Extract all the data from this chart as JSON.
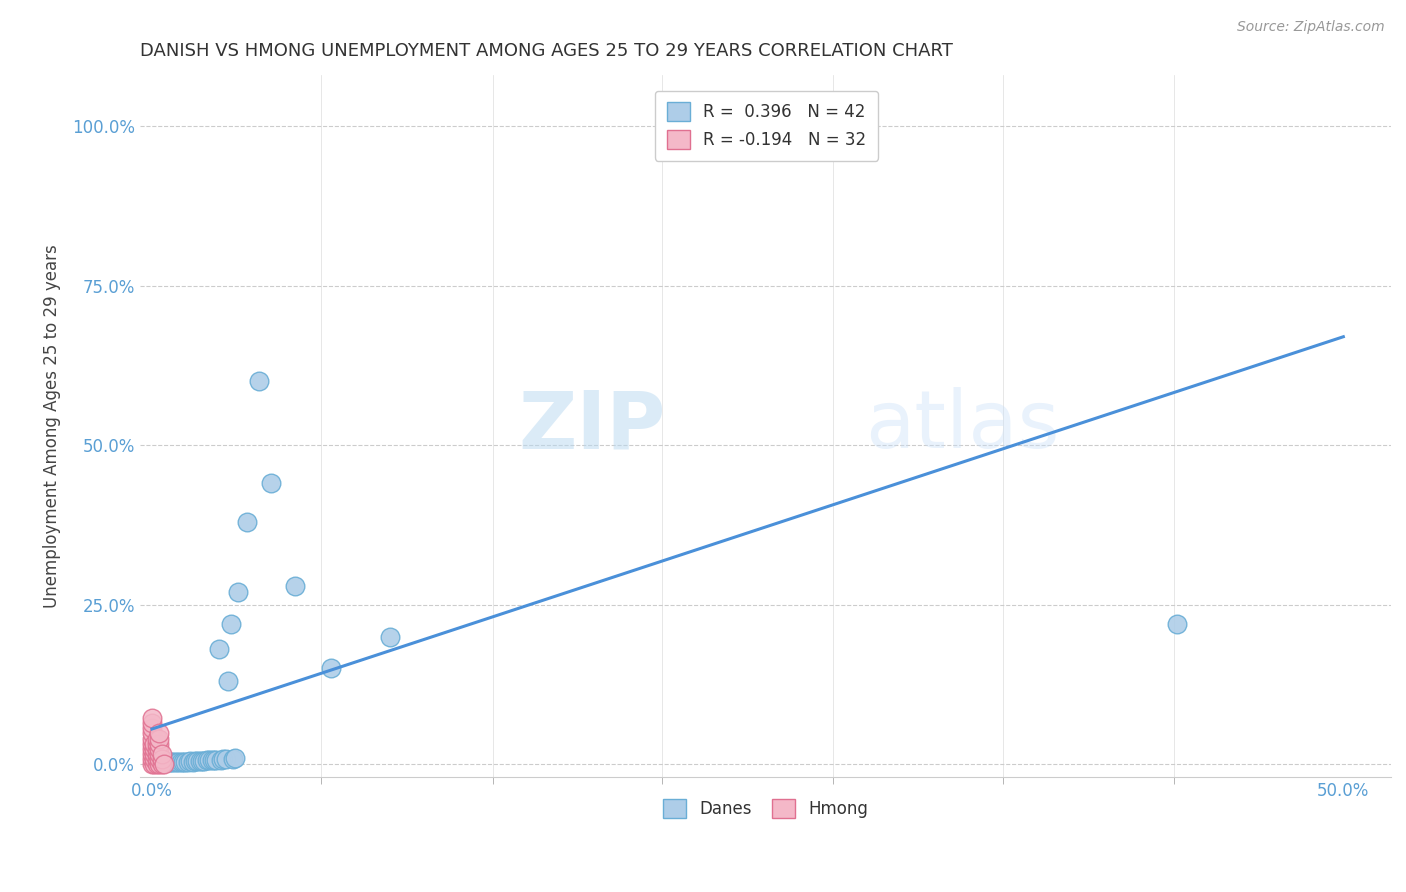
{
  "title": "DANISH VS HMONG UNEMPLOYMENT AMONG AGES 25 TO 29 YEARS CORRELATION CHART",
  "source": "Source: ZipAtlas.com",
  "ylabel": "Unemployment Among Ages 25 to 29 years",
  "xlim": [
    -0.005,
    0.52
  ],
  "ylim": [
    -0.02,
    1.08
  ],
  "x_ticks": [
    0.0,
    0.5
  ],
  "x_tick_labels": [
    "0.0%",
    "50.0%"
  ],
  "y_ticks": [
    0.0,
    0.25,
    0.5,
    0.75,
    1.0
  ],
  "y_tick_labels": [
    "0.0%",
    "25.0%",
    "50.0%",
    "75.0%",
    "100.0%"
  ],
  "legend_r_danes": "R =  0.396",
  "legend_n_danes": "N = 42",
  "legend_r_hmong": "R = -0.194",
  "legend_n_hmong": "N = 32",
  "danes_color": "#aecde8",
  "danes_edge_color": "#6aaed6",
  "hmong_color": "#f4b8c8",
  "hmong_edge_color": "#e07090",
  "danes_line_color": "#4a90d9",
  "hmong_line_color": "#e07090",
  "background_color": "#ffffff",
  "danes_x": [
    0.002,
    0.003,
    0.004,
    0.005,
    0.006,
    0.007,
    0.008,
    0.009,
    0.01,
    0.011,
    0.012,
    0.013,
    0.014,
    0.015,
    0.016,
    0.017,
    0.018,
    0.019,
    0.02,
    0.021,
    0.022,
    0.023,
    0.024,
    0.025,
    0.026,
    0.027,
    0.028,
    0.029,
    0.03,
    0.031,
    0.032,
    0.033,
    0.034,
    0.035,
    0.036,
    0.04,
    0.045,
    0.05,
    0.06,
    0.075,
    0.1,
    0.43
  ],
  "danes_y": [
    0.003,
    0.004,
    0.003,
    0.003,
    0.003,
    0.003,
    0.003,
    0.003,
    0.003,
    0.004,
    0.004,
    0.004,
    0.004,
    0.004,
    0.005,
    0.004,
    0.005,
    0.005,
    0.005,
    0.005,
    0.005,
    0.006,
    0.006,
    0.006,
    0.007,
    0.007,
    0.18,
    0.007,
    0.008,
    0.008,
    0.13,
    0.22,
    0.008,
    0.009,
    0.27,
    0.38,
    0.6,
    0.44,
    0.28,
    0.15,
    0.2,
    0.22
  ],
  "hmong_x": [
    0.0,
    0.0,
    0.0,
    0.0,
    0.0,
    0.0,
    0.0,
    0.0,
    0.0,
    0.0,
    0.001,
    0.001,
    0.001,
    0.001,
    0.001,
    0.002,
    0.002,
    0.002,
    0.002,
    0.002,
    0.002,
    0.003,
    0.003,
    0.003,
    0.003,
    0.003,
    0.003,
    0.003,
    0.004,
    0.004,
    0.004,
    0.005
  ],
  "hmong_y": [
    0.0,
    0.008,
    0.016,
    0.024,
    0.032,
    0.04,
    0.048,
    0.056,
    0.064,
    0.072,
    0.0,
    0.008,
    0.016,
    0.024,
    0.032,
    0.0,
    0.008,
    0.016,
    0.024,
    0.032,
    0.04,
    0.0,
    0.008,
    0.016,
    0.024,
    0.032,
    0.04,
    0.048,
    0.0,
    0.008,
    0.016,
    0.0
  ],
  "danes_trendline_x": [
    0.0,
    0.5
  ],
  "danes_trendline_y": [
    0.055,
    0.67
  ],
  "watermark_zip": "ZIP",
  "watermark_atlas": "atlas"
}
